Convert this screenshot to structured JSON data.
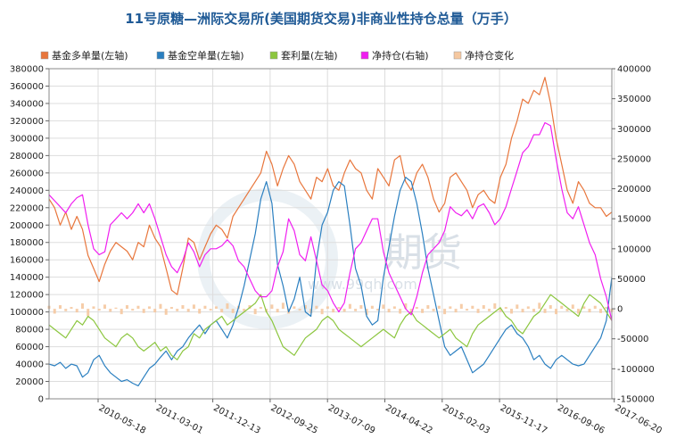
{
  "title": "11号原糖—洲际交易所(美国期货交易)非商业性持仓总量（万手）",
  "watermark": {
    "text": "期货",
    "url": "www.99qh.com"
  },
  "legend": [
    {
      "label": "基金多单量(左轴)",
      "color": "#e8763c"
    },
    {
      "label": "基金空单量(左轴)",
      "color": "#2a7fc0"
    },
    {
      "label": "套利量(左轴)",
      "color": "#8cc63f"
    },
    {
      "label": "净持仓(右轴)",
      "color": "#f01ef0"
    },
    {
      "label": "净持仓变化",
      "color": "#f5c8a0"
    }
  ],
  "chart_data": {
    "type": "line",
    "title": "11号原糖—洲际交易所(美国期货交易)非商业性持仓总量（万手）",
    "x_labels": [
      "2010-05-18",
      "2011-03-01",
      "2011-12-13",
      "2012-09-25",
      "2013-07-09",
      "2014-04-22",
      "2015-02-03",
      "2015-11-17",
      "2016-09-06",
      "2017-06-20"
    ],
    "y_left": {
      "min": 0,
      "max": 380000,
      "step": 20000,
      "ticks": [
        "0",
        "20000",
        "40000",
        "60000",
        "80000",
        "100000",
        "120000",
        "140000",
        "160000",
        "180000",
        "200000",
        "220000",
        "240000",
        "260000",
        "280000",
        "300000",
        "320000",
        "340000",
        "360000",
        "380000"
      ]
    },
    "y_right": {
      "min": -150000,
      "max": 400000,
      "step": 50000,
      "ticks": [
        "-150000",
        "-100000",
        "-50000",
        "0",
        "50000",
        "100000",
        "150000",
        "200000",
        "250000",
        "300000",
        "350000",
        "400000"
      ]
    },
    "x_range": [
      0,
      101
    ],
    "grid": true,
    "legend_position": "top",
    "series": [
      {
        "name": "基金多单量(左轴)",
        "axis": "left",
        "kind": "line",
        "color": "#e8763c",
        "values": [
          230000,
          220000,
          200000,
          215000,
          195000,
          210000,
          195000,
          165000,
          150000,
          135000,
          155000,
          170000,
          180000,
          175000,
          170000,
          160000,
          180000,
          175000,
          200000,
          185000,
          175000,
          150000,
          125000,
          120000,
          150000,
          185000,
          180000,
          160000,
          175000,
          190000,
          200000,
          195000,
          185000,
          210000,
          220000,
          230000,
          240000,
          250000,
          260000,
          285000,
          270000,
          245000,
          265000,
          280000,
          270000,
          250000,
          240000,
          230000,
          255000,
          250000,
          265000,
          245000,
          240000,
          260000,
          275000,
          265000,
          260000,
          240000,
          230000,
          265000,
          255000,
          245000,
          275000,
          280000,
          250000,
          240000,
          260000,
          270000,
          255000,
          230000,
          215000,
          225000,
          255000,
          260000,
          250000,
          240000,
          220000,
          235000,
          240000,
          230000,
          225000,
          255000,
          270000,
          300000,
          320000,
          345000,
          340000,
          355000,
          350000,
          370000,
          340000,
          300000,
          270000,
          240000,
          225000,
          250000,
          240000,
          225000,
          220000,
          220000,
          210000,
          215000
        ]
      },
      {
        "name": "基金空单量(左轴)",
        "axis": "left",
        "kind": "line",
        "color": "#2a7fc0",
        "values": [
          40000,
          38000,
          42000,
          35000,
          40000,
          38000,
          25000,
          30000,
          45000,
          50000,
          38000,
          30000,
          25000,
          20000,
          22000,
          18000,
          15000,
          25000,
          35000,
          40000,
          48000,
          55000,
          45000,
          55000,
          60000,
          70000,
          78000,
          85000,
          75000,
          85000,
          90000,
          80000,
          70000,
          85000,
          105000,
          130000,
          160000,
          190000,
          230000,
          250000,
          225000,
          155000,
          130000,
          100000,
          115000,
          140000,
          100000,
          95000,
          160000,
          200000,
          215000,
          240000,
          250000,
          245000,
          200000,
          150000,
          130000,
          95000,
          85000,
          90000,
          140000,
          175000,
          210000,
          240000,
          255000,
          250000,
          225000,
          190000,
          150000,
          120000,
          90000,
          60000,
          50000,
          55000,
          60000,
          45000,
          30000,
          35000,
          40000,
          50000,
          60000,
          70000,
          80000,
          85000,
          75000,
          70000,
          60000,
          45000,
          50000,
          40000,
          35000,
          45000,
          50000,
          45000,
          40000,
          38000,
          40000,
          50000,
          60000,
          70000,
          90000,
          140000
        ]
      },
      {
        "name": "套利量(左轴)",
        "axis": "left",
        "kind": "line",
        "color": "#8cc63f",
        "values": [
          85000,
          80000,
          75000,
          70000,
          80000,
          90000,
          85000,
          95000,
          90000,
          80000,
          70000,
          65000,
          60000,
          70000,
          75000,
          70000,
          60000,
          55000,
          60000,
          65000,
          55000,
          60000,
          50000,
          45000,
          55000,
          60000,
          75000,
          70000,
          80000,
          85000,
          90000,
          95000,
          85000,
          90000,
          95000,
          100000,
          105000,
          110000,
          120000,
          100000,
          90000,
          75000,
          60000,
          55000,
          50000,
          60000,
          70000,
          75000,
          80000,
          90000,
          95000,
          90000,
          80000,
          75000,
          70000,
          65000,
          60000,
          65000,
          70000,
          75000,
          80000,
          75000,
          70000,
          85000,
          95000,
          100000,
          90000,
          85000,
          80000,
          75000,
          70000,
          75000,
          80000,
          70000,
          65000,
          60000,
          75000,
          85000,
          90000,
          95000,
          100000,
          105000,
          95000,
          90000,
          80000,
          75000,
          85000,
          95000,
          100000,
          110000,
          120000,
          115000,
          110000,
          105000,
          100000,
          95000,
          110000,
          120000,
          115000,
          110000,
          100000,
          90000
        ]
      },
      {
        "name": "净持仓(右轴)",
        "axis": "right",
        "kind": "line",
        "color": "#f01ef0",
        "values": [
          190000,
          180000,
          170000,
          160000,
          175000,
          185000,
          190000,
          140000,
          100000,
          90000,
          95000,
          140000,
          150000,
          160000,
          150000,
          160000,
          175000,
          160000,
          175000,
          150000,
          120000,
          90000,
          70000,
          60000,
          80000,
          110000,
          95000,
          70000,
          90000,
          100000,
          100000,
          105000,
          115000,
          105000,
          80000,
          70000,
          50000,
          30000,
          20000,
          20000,
          30000,
          70000,
          95000,
          150000,
          130000,
          90000,
          80000,
          120000,
          80000,
          40000,
          30000,
          10000,
          -5000,
          10000,
          60000,
          100000,
          110000,
          130000,
          150000,
          150000,
          95000,
          60000,
          40000,
          20000,
          0,
          -10000,
          20000,
          60000,
          90000,
          100000,
          110000,
          130000,
          170000,
          160000,
          155000,
          165000,
          150000,
          170000,
          175000,
          160000,
          140000,
          150000,
          170000,
          200000,
          230000,
          260000,
          270000,
          290000,
          290000,
          310000,
          305000,
          250000,
          200000,
          160000,
          150000,
          170000,
          140000,
          110000,
          90000,
          50000,
          20000,
          -20000
        ]
      },
      {
        "name": "净持仓变化",
        "axis": "right",
        "kind": "bar",
        "color": "#f5c8a0",
        "values": [
          5000,
          -8000,
          6000,
          -4000,
          3000,
          -6000,
          9000,
          -12000,
          4000,
          -3000,
          7000,
          -5000,
          2000,
          -9000,
          6000,
          -3000,
          5000,
          -7000,
          4000,
          -6000,
          8000,
          -10000,
          3000,
          -4000,
          6000,
          -5000,
          7000,
          -8000,
          5000,
          -3000,
          4000,
          -6000,
          9000,
          -7000,
          5000,
          -4000,
          6000,
          -9000,
          3000,
          -5000,
          7000,
          -6000,
          10000,
          -8000,
          4000,
          -3000,
          6000,
          -7000,
          5000,
          -9000,
          4000,
          -6000,
          3000,
          -5000,
          8000,
          -4000,
          6000,
          -10000,
          5000,
          -3000,
          7000,
          -6000,
          4000,
          -8000,
          9000,
          -5000,
          3000,
          -7000,
          6000,
          -4000,
          5000,
          -9000,
          4000,
          -6000,
          8000,
          -3000,
          5000,
          -7000,
          6000,
          -4000,
          9000,
          -5000,
          3000,
          -8000,
          7000,
          -6000,
          4000,
          -5000,
          10000,
          -7000,
          6000,
          -9000,
          5000,
          -4000,
          7000,
          -8000,
          4000,
          -6000,
          5000,
          -7000,
          3000,
          -5000
        ]
      }
    ]
  }
}
